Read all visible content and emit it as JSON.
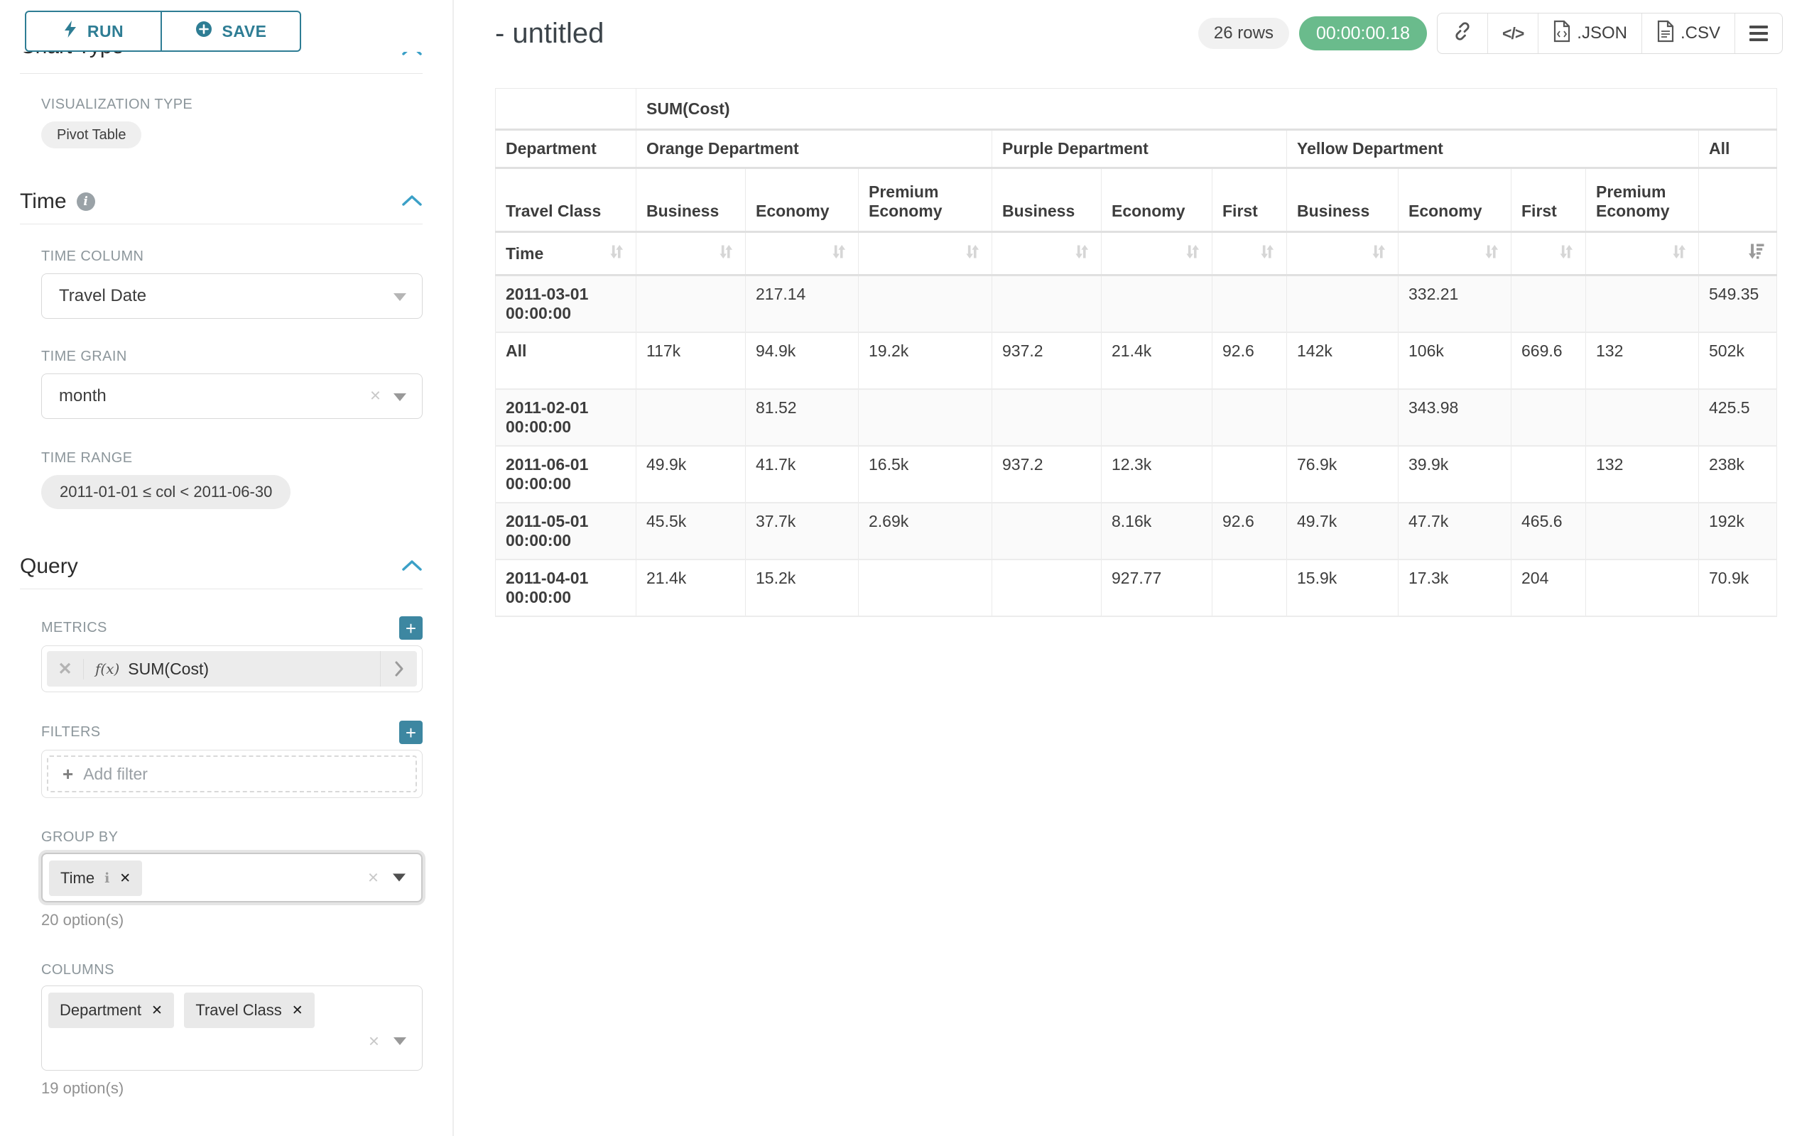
{
  "sidebar": {
    "run_label": "RUN",
    "save_label": "SAVE",
    "chart_type_heading": "Chart Type",
    "visualization_type_label": "VISUALIZATION TYPE",
    "visualization_type_value": "Pivot Table",
    "time_section": {
      "title": "Time",
      "time_column_label": "TIME COLUMN",
      "time_column_value": "Travel Date",
      "time_grain_label": "TIME GRAIN",
      "time_grain_value": "month",
      "time_range_label": "TIME RANGE",
      "time_range_value": "2011-01-01 ≤ col < 2011-06-30"
    },
    "query_section": {
      "title": "Query",
      "metrics_label": "METRICS",
      "metric_fx": "f(x)",
      "metric_value": "SUM(Cost)",
      "filters_label": "FILTERS",
      "add_filter_label": "Add filter",
      "group_by_label": "GROUP BY",
      "group_by_tags": [
        "Time"
      ],
      "group_by_hint": "20 option(s)",
      "columns_label": "COLUMNS",
      "columns_tags": [
        "Department",
        "Travel Class"
      ],
      "columns_hint": "19 option(s)"
    }
  },
  "header": {
    "title": "- untitled",
    "row_count": "26 rows",
    "timer": "00:00:00.18",
    "json_label": ".JSON",
    "csv_label": ".CSV"
  },
  "pivot_table": {
    "metric_label": "SUM(Cost)",
    "corner_labels": {
      "row2": "Department",
      "row3": "Travel Class",
      "row4": "Time"
    },
    "groups": [
      {
        "label": "Orange Department",
        "columns": [
          "Business",
          "Economy",
          "Premium Economy"
        ]
      },
      {
        "label": "Purple Department",
        "columns": [
          "Business",
          "Economy",
          "First"
        ]
      },
      {
        "label": "Yellow Department",
        "columns": [
          "Business",
          "Economy",
          "First",
          "Premium Economy"
        ]
      },
      {
        "label": "All",
        "columns": [
          ""
        ]
      }
    ],
    "sorted_column_index": 10,
    "sort_direction": "desc",
    "rows": [
      {
        "label": "2011-03-01 00:00:00",
        "values": [
          "",
          "217.14",
          "",
          "",
          "",
          "",
          "",
          "332.21",
          "",
          "",
          "549.35"
        ]
      },
      {
        "label": "All",
        "values": [
          "117k",
          "94.9k",
          "19.2k",
          "937.2",
          "21.4k",
          "92.6",
          "142k",
          "106k",
          "669.6",
          "132",
          "502k"
        ]
      },
      {
        "label": "2011-02-01 00:00:00",
        "values": [
          "",
          "81.52",
          "",
          "",
          "",
          "",
          "",
          "343.98",
          "",
          "",
          "425.5"
        ]
      },
      {
        "label": "2011-06-01 00:00:00",
        "values": [
          "49.9k",
          "41.7k",
          "16.5k",
          "937.2",
          "12.3k",
          "",
          "76.9k",
          "39.9k",
          "",
          "132",
          "238k"
        ]
      },
      {
        "label": "2011-05-01 00:00:00",
        "values": [
          "45.5k",
          "37.7k",
          "2.69k",
          "",
          "8.16k",
          "92.6",
          "49.7k",
          "47.7k",
          "465.6",
          "",
          "192k"
        ]
      },
      {
        "label": "2011-04-01 00:00:00",
        "values": [
          "21.4k",
          "15.2k",
          "",
          "",
          "927.77",
          "",
          "15.9k",
          "17.3k",
          "204",
          "",
          "70.9k"
        ]
      }
    ]
  },
  "colors": {
    "accent_teal": "#2e7d94",
    "chevron_teal": "#3ba0c7",
    "timer_green": "#6abb8c"
  }
}
